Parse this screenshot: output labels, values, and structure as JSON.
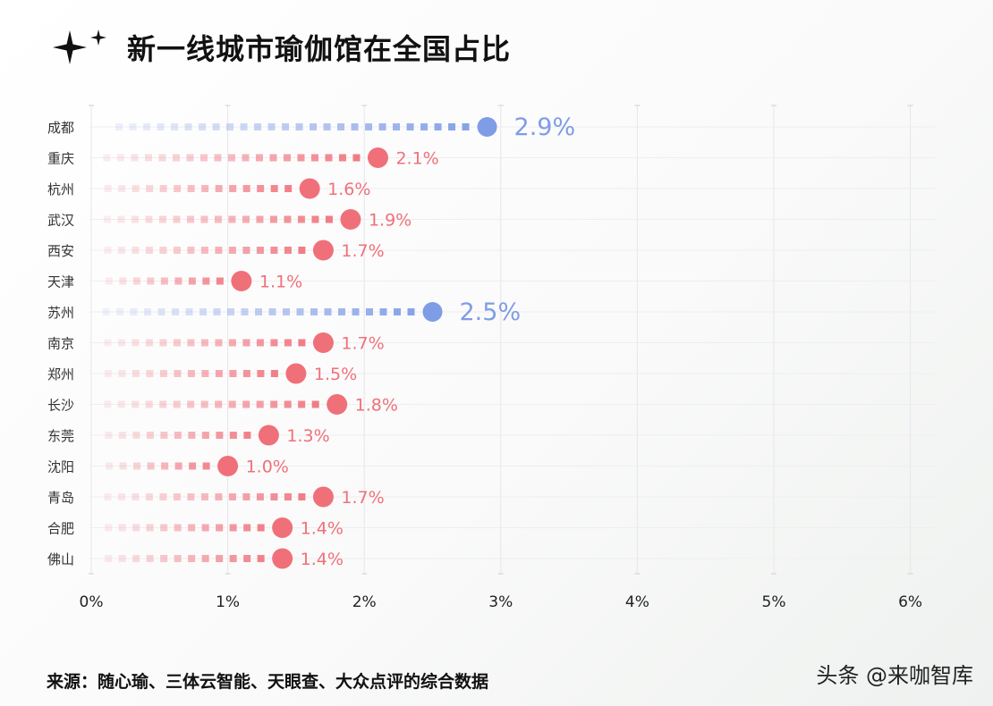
{
  "title": "新一线城市瑜伽馆在全国占比",
  "icon": "sparkle-icon",
  "source": "来源：随心瑜、三体云智能、天眼查、大众点评的综合数据",
  "watermark": "头条 @来咖智库",
  "colors": {
    "highlight": "#7f9ce6",
    "normal": "#f0707a",
    "grid": "#e6e6ec"
  },
  "chart_data": {
    "type": "bar",
    "orientation": "horizontal",
    "style": "lollipop",
    "categories": [
      "成都",
      "重庆",
      "杭州",
      "武汉",
      "西安",
      "天津",
      "苏州",
      "南京",
      "郑州",
      "长沙",
      "东莞",
      "沈阳",
      "青岛",
      "合肥",
      "佛山"
    ],
    "values": [
      2.9,
      2.1,
      1.6,
      1.9,
      1.7,
      1.1,
      2.5,
      1.7,
      1.5,
      1.8,
      1.3,
      1.0,
      1.7,
      1.4,
      1.4
    ],
    "labels": [
      "2.9%",
      "2.1%",
      "1.6%",
      "1.9%",
      "1.7%",
      "1.1%",
      "2.5%",
      "1.7%",
      "1.5%",
      "1.8%",
      "1.3%",
      "1.0%",
      "1.7%",
      "1.4%",
      "1.4%"
    ],
    "highlighted": [
      "成都",
      "苏州"
    ],
    "xlim": [
      0,
      6
    ],
    "xticks": [
      "0%",
      "1%",
      "2%",
      "3%",
      "4%",
      "5%",
      "6%"
    ],
    "unit": "%",
    "grid": true
  }
}
